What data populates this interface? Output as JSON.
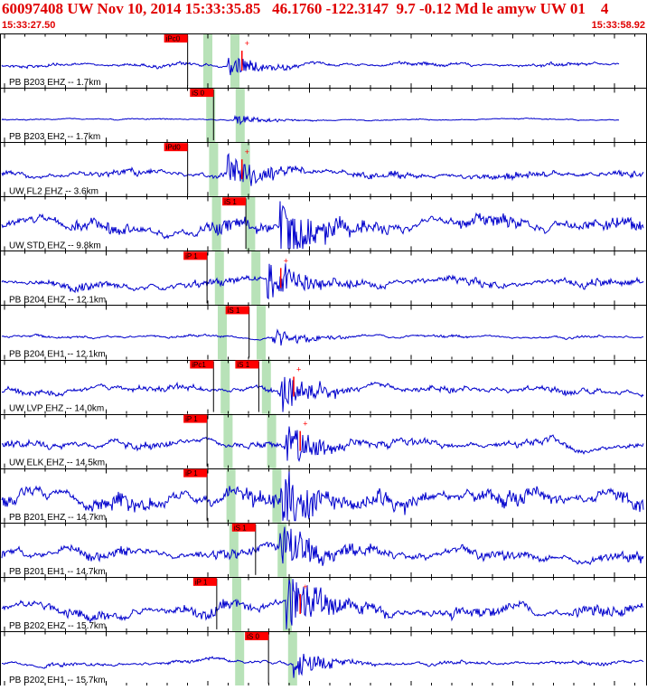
{
  "header": {
    "title": "60097408 UW Nov 10, 2014 15:33:35.85   46.1760 -122.3147  9.7 -0.12 Md le amyw UW 01    4",
    "start_time": "15:33:27.50",
    "end_time": "15:33:58.92"
  },
  "colors": {
    "trace": "#0000cc",
    "pick_box": "#ff0000",
    "highlight": "#b8e2b8",
    "title": "#e00000",
    "border": "#000000"
  },
  "channels": [
    {
      "label": "PB B203 EHZ -- 1.7km",
      "amp": 5,
      "noise": 3,
      "event": 0.36,
      "pick": "iPc0",
      "pick_t": 0.29,
      "hl": 0.325,
      "plus": true
    },
    {
      "label": "PB B203 EH2 -- 1.7km",
      "amp": 2,
      "noise": 1,
      "event": 0.37,
      "pick": "iS 0",
      "pick_t": 0.33,
      "hl": 0.365,
      "plus": false
    },
    {
      "label": "UW FL2 EHZ -- 3.6km",
      "amp": 8,
      "noise": 6,
      "event": 0.36,
      "pick": "iPd0",
      "pick_t": 0.29,
      "hl": 0.0,
      "plus": true
    },
    {
      "label": "UW STD EHZ -- 9.8km",
      "amp": 14,
      "noise": 12,
      "event": 0.44,
      "pick": "iS 1",
      "pick_t": 0.38,
      "hl": 0.0,
      "plus": false
    },
    {
      "label": "PB B204 EHZ -- 12.1km",
      "amp": 10,
      "noise": 7,
      "event": 0.42,
      "pick": "iP 1",
      "pick_t": 0.32,
      "hl": 0.0,
      "plus": true
    },
    {
      "label": "PB B204 EH1 -- 12.1km",
      "amp": 4,
      "noise": 2,
      "event": 0.43,
      "pick": "iS 1",
      "pick_t": 0.385,
      "hl": 0.0,
      "plus": false
    },
    {
      "label": "UW LVP EHZ -- 14.0km",
      "amp": 10,
      "noise": 5,
      "event": 0.44,
      "pick": "iPc1",
      "pick_t": 0.33,
      "hl": 0.0,
      "plus": true,
      "pick2": "iS 1",
      "pick2_t": 0.4
    },
    {
      "label": "UW ELK EHZ -- 14.5km",
      "amp": 10,
      "noise": 6,
      "event": 0.45,
      "pick": "iP 1",
      "pick_t": 0.32,
      "hl": 0.0,
      "plus": true
    },
    {
      "label": "PB B201 EHZ -- 14.7km",
      "amp": 18,
      "noise": 15,
      "event": 0.44,
      "pick": "iP 1",
      "pick_t": 0.32,
      "hl": 0.0,
      "plus": false
    },
    {
      "label": "PB B201 EH1 -- 14.7km",
      "amp": 12,
      "noise": 10,
      "event": 0.44,
      "pick": "iS 1",
      "pick_t": 0.395,
      "hl": 0.0,
      "plus": false
    },
    {
      "label": "PB B202 EHZ -- 15.7km",
      "amp": 14,
      "noise": 10,
      "event": 0.45,
      "pick": "iP 1",
      "pick_t": 0.335,
      "hl": 0.0,
      "plus": true
    },
    {
      "label": "PB B202 EH1 -- 15.7km",
      "amp": 6,
      "noise": 3,
      "event": 0.46,
      "pick": "iS 0",
      "pick_t": 0.415,
      "hl": 0.0,
      "plus": false
    }
  ]
}
